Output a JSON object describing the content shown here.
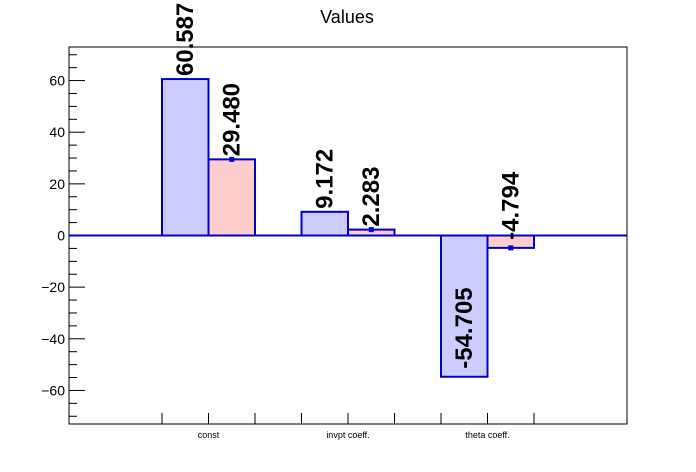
{
  "chart_data": {
    "type": "bar",
    "title": "Values",
    "categories": [
      "const",
      "invpt coeff.",
      "theta coeff."
    ],
    "series": [
      {
        "values": [
          60.587,
          9.172,
          -54.705
        ],
        "labels": [
          "60.587",
          "9.172",
          "-54.705"
        ],
        "fill": "#ccccff",
        "stroke": "#0000cc"
      },
      {
        "values": [
          29.48,
          2.283,
          -4.794
        ],
        "labels": [
          "29.480",
          "2.283",
          "-4.794"
        ],
        "fill": "#ffcccc",
        "stroke": "#0000cc"
      }
    ],
    "yticks": [
      -60,
      -40,
      -20,
      0,
      20,
      40,
      60
    ],
    "yticklabels": [
      "−60",
      "−40",
      "−20",
      "0",
      "20",
      "40",
      "60"
    ],
    "ylim": [
      -73,
      73
    ],
    "xlabel": "",
    "ylabel": "",
    "grid": false,
    "legend": "none"
  }
}
